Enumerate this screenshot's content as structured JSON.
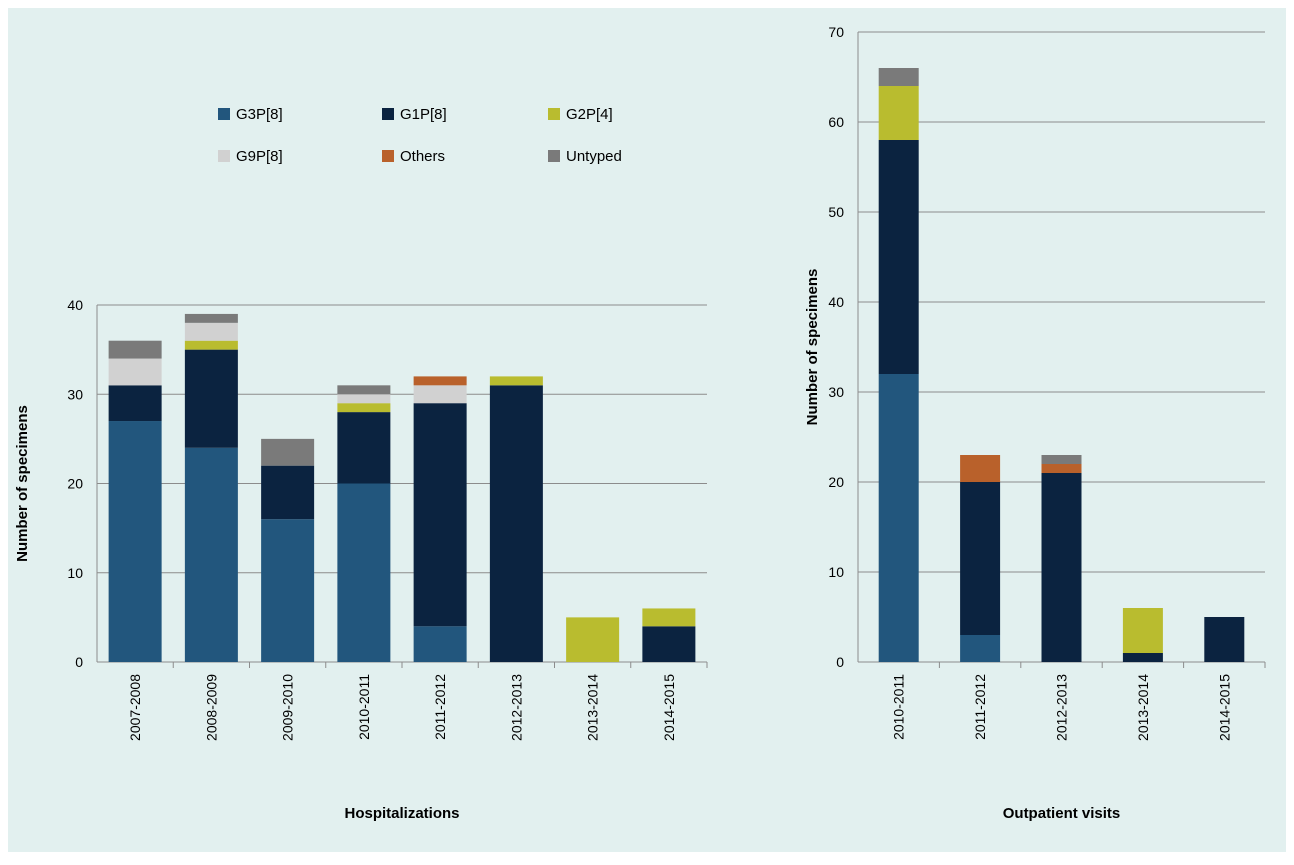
{
  "colors": {
    "background": "#e2f0ef",
    "G3P[8]": "#22567d",
    "G1P[8]": "#0b2340",
    "G2P[4]": "#b9bc2f",
    "G9P[8]": "#d1d1d1",
    "Others": "#b9612b",
    "Untyped": "#7a7a7a",
    "grid": "#8c8c8c"
  },
  "legend": {
    "placement": "top",
    "items": [
      "G3P[8]",
      "G1P[8]",
      "G2P[4]",
      "G9P[8]",
      "Others",
      "Untyped"
    ]
  },
  "chart_data": [
    {
      "type": "bar",
      "stacked": true,
      "title": "",
      "xlabel": "Hospitalizations",
      "ylabel": "Number of specimens",
      "ylim": [
        0,
        40
      ],
      "yticks": [
        0,
        10,
        20,
        30,
        40
      ],
      "grid": true,
      "categories": [
        "2007-2008",
        "2008-2009",
        "2009-2010",
        "2010-2011",
        "2011-2012",
        "2012-2013",
        "2013-2014",
        "2014-2015"
      ],
      "series": [
        {
          "name": "G3P[8]",
          "values": [
            27,
            24,
            16,
            20,
            4,
            0,
            0,
            0
          ]
        },
        {
          "name": "G1P[8]",
          "values": [
            4,
            11,
            6,
            8,
            25,
            31,
            0,
            4
          ]
        },
        {
          "name": "G2P[4]",
          "values": [
            0,
            1,
            0,
            1,
            0,
            1,
            5,
            2
          ]
        },
        {
          "name": "G9P[8]",
          "values": [
            3,
            2,
            0,
            1,
            2,
            0,
            0,
            0
          ]
        },
        {
          "name": "Others",
          "values": [
            0,
            0,
            0,
            0,
            1,
            0,
            0,
            0
          ]
        },
        {
          "name": "Untyped",
          "values": [
            2,
            1,
            3,
            1,
            0,
            0,
            0,
            0
          ]
        }
      ]
    },
    {
      "type": "bar",
      "stacked": true,
      "title": "",
      "xlabel": "Outpatient visits",
      "ylabel": "Number of specimens",
      "ylim": [
        0,
        70
      ],
      "yticks": [
        0,
        10,
        20,
        30,
        40,
        50,
        60,
        70
      ],
      "grid": true,
      "categories": [
        "2010-2011",
        "2011-2012",
        "2012-2013",
        "2013-2014",
        "2014-2015"
      ],
      "series": [
        {
          "name": "G3P[8]",
          "values": [
            32,
            3,
            0,
            0,
            0
          ]
        },
        {
          "name": "G1P[8]",
          "values": [
            26,
            17,
            21,
            1,
            5
          ]
        },
        {
          "name": "G2P[4]",
          "values": [
            6,
            0,
            0,
            5,
            0
          ]
        },
        {
          "name": "G9P[8]",
          "values": [
            0,
            0,
            0,
            0,
            0
          ]
        },
        {
          "name": "Others",
          "values": [
            0,
            3,
            1,
            0,
            0
          ]
        },
        {
          "name": "Untyped",
          "values": [
            2,
            0,
            1,
            0,
            0
          ]
        }
      ]
    }
  ]
}
